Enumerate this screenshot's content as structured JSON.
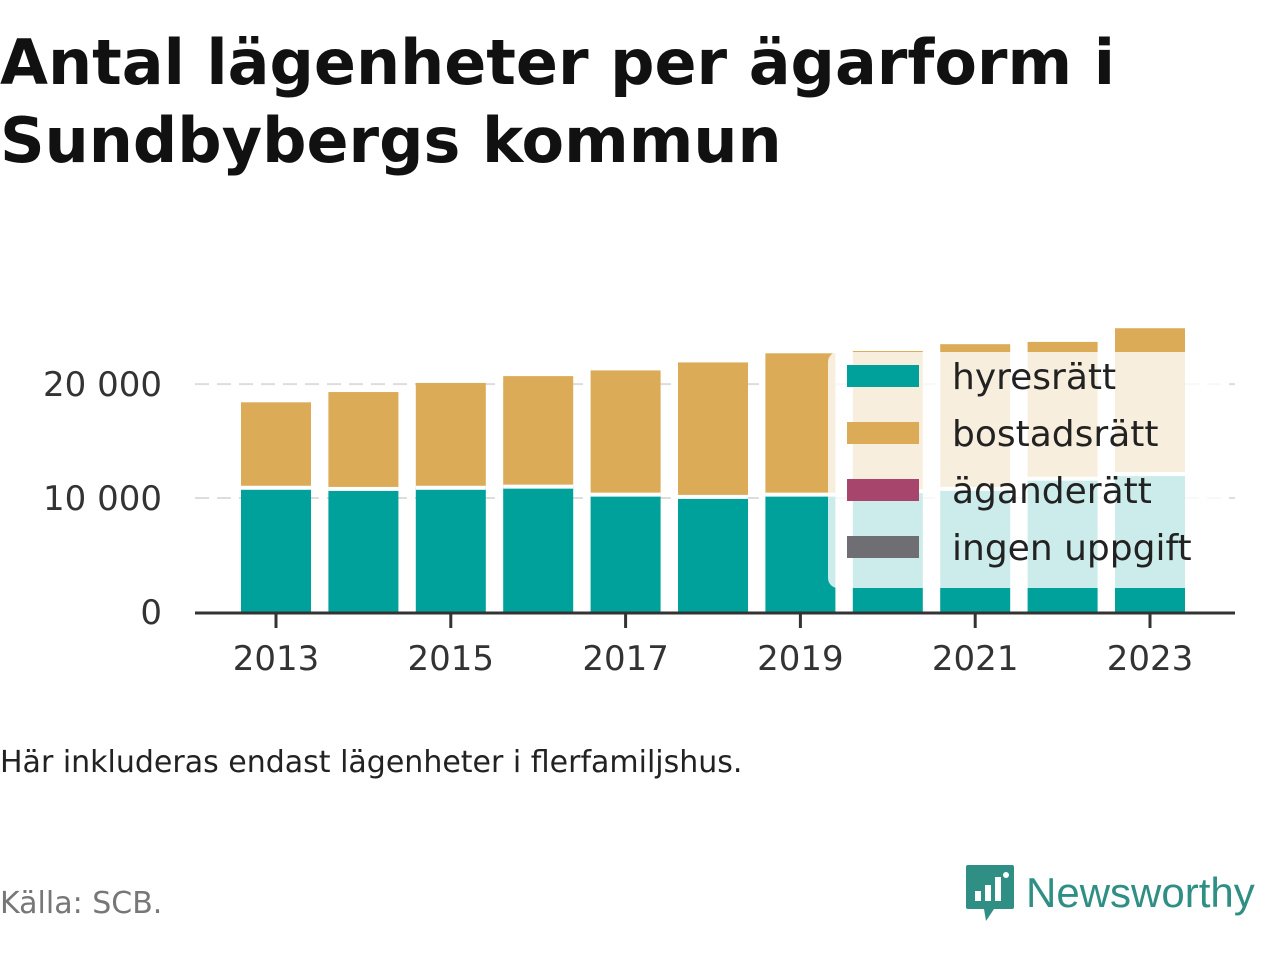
{
  "title": "Antal lägenheter per ägarform i Sundbybergs kommun",
  "note": "Här inkluderas endast lägenheter i flerfamiljshus.",
  "source": "Källa: SCB.",
  "brand": {
    "name": "Newsworthy",
    "icon": "bar-chart-speech-bubble-icon",
    "color": "#2f8f84"
  },
  "chart_data": {
    "type": "bar",
    "stacked": true,
    "x": [
      2013,
      2014,
      2015,
      2016,
      2017,
      2018,
      2019,
      2020,
      2021,
      2022,
      2023
    ],
    "x_tick_labels": [
      "2013",
      "2015",
      "2017",
      "2019",
      "2021",
      "2023"
    ],
    "y_ticks": [
      0,
      10000,
      20000
    ],
    "y_tick_labels": [
      "0",
      "10 000",
      "20 000"
    ],
    "ylim": [
      0,
      26500
    ],
    "grid": true,
    "legend_position": "top-right",
    "series": [
      {
        "name": "hyresrätt",
        "color": "#00a19a",
        "values": [
          10900,
          10800,
          10900,
          11000,
          10300,
          10100,
          10300,
          10600,
          10800,
          11700,
          12100
        ]
      },
      {
        "name": "bostadsrätt",
        "color": "#dcab58",
        "values": [
          7500,
          8500,
          9200,
          9700,
          10900,
          11800,
          12400,
          12300,
          12700,
          12000,
          12800
        ]
      },
      {
        "name": "äganderätt",
        "color": "#a8456c",
        "values": [
          0,
          0,
          0,
          0,
          0,
          0,
          0,
          0,
          0,
          0,
          0
        ]
      },
      {
        "name": "ingen uppgift",
        "color": "#6e6e73",
        "values": [
          0,
          0,
          0,
          0,
          0,
          0,
          0,
          0,
          0,
          0,
          0
        ]
      }
    ]
  }
}
